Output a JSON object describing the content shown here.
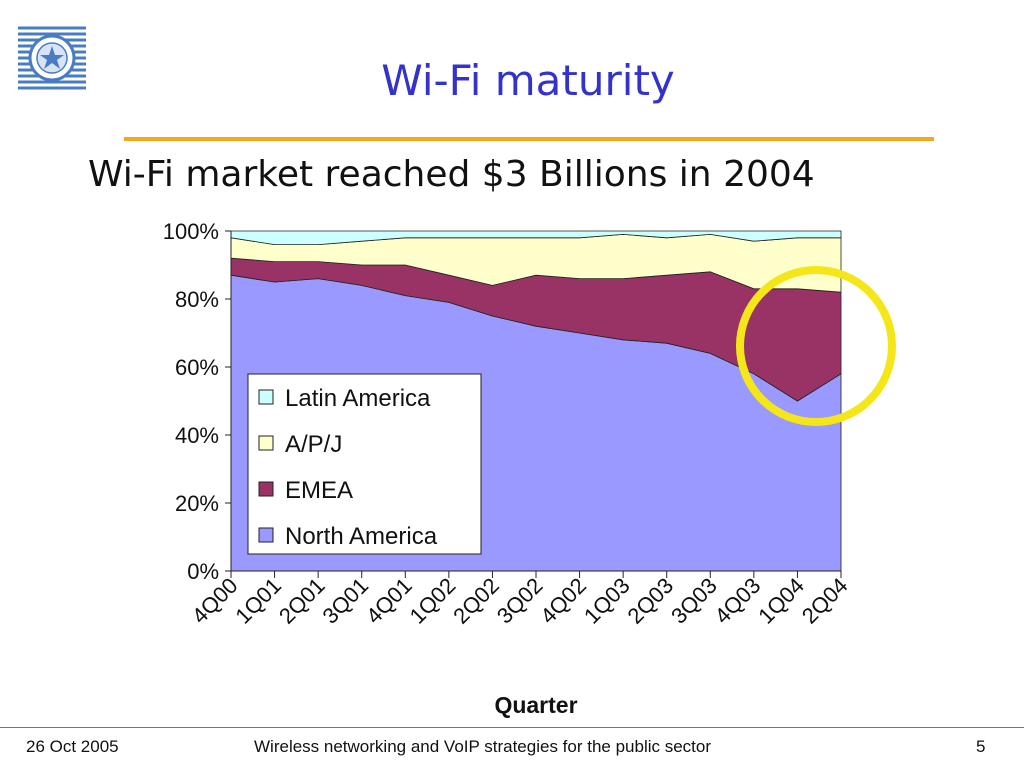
{
  "slide": {
    "title": "Wi-Fi maturity",
    "subtitle": "Wi-Fi market reached $3 Billions in 2004"
  },
  "footer": {
    "date": "26 Oct 2005",
    "center": "Wireless networking and VoIP strategies for the public sector",
    "page": "5"
  },
  "colors": {
    "title": "#3333cc",
    "rule": "#f2a81d",
    "highlight_circle": "#f5e61a"
  },
  "chart_data": {
    "type": "area",
    "stacked": true,
    "xlabel": "Quarter",
    "ylabel": "",
    "ylim": [
      0,
      100
    ],
    "yticks": [
      "0%",
      "20%",
      "40%",
      "60%",
      "80%",
      "100%"
    ],
    "categories": [
      "4Q00",
      "1Q01",
      "2Q01",
      "3Q01",
      "4Q01",
      "1Q02",
      "2Q02",
      "3Q02",
      "4Q02",
      "1Q03",
      "2Q03",
      "3Q03",
      "4Q03",
      "1Q04",
      "2Q04"
    ],
    "series": [
      {
        "name": "North America",
        "color": "#9999ff",
        "values": [
          87,
          85,
          86,
          84,
          81,
          79,
          75,
          72,
          70,
          68,
          67,
          64,
          58,
          50,
          58
        ]
      },
      {
        "name": "EMEA",
        "color": "#993366",
        "values": [
          5,
          6,
          5,
          6,
          9,
          8,
          9,
          15,
          16,
          18,
          20,
          24,
          25,
          33,
          24
        ]
      },
      {
        "name": "A/P/J",
        "color": "#ffffcc",
        "values": [
          6,
          5,
          5,
          7,
          8,
          11,
          14,
          11,
          12,
          13,
          11,
          11,
          14,
          15,
          16
        ]
      },
      {
        "name": "Latin America",
        "color": "#ccffff",
        "values": [
          2,
          4,
          4,
          3,
          2,
          2,
          2,
          2,
          2,
          1,
          2,
          1,
          3,
          2,
          2
        ]
      }
    ],
    "legend_order": [
      "Latin America",
      "A/P/J",
      "EMEA",
      "North America"
    ],
    "legend_position": "lower-left",
    "grid": false,
    "annotation": {
      "type": "circle",
      "around": [
        "1Q04",
        "2Q04"
      ],
      "color": "#f5e61a"
    }
  }
}
